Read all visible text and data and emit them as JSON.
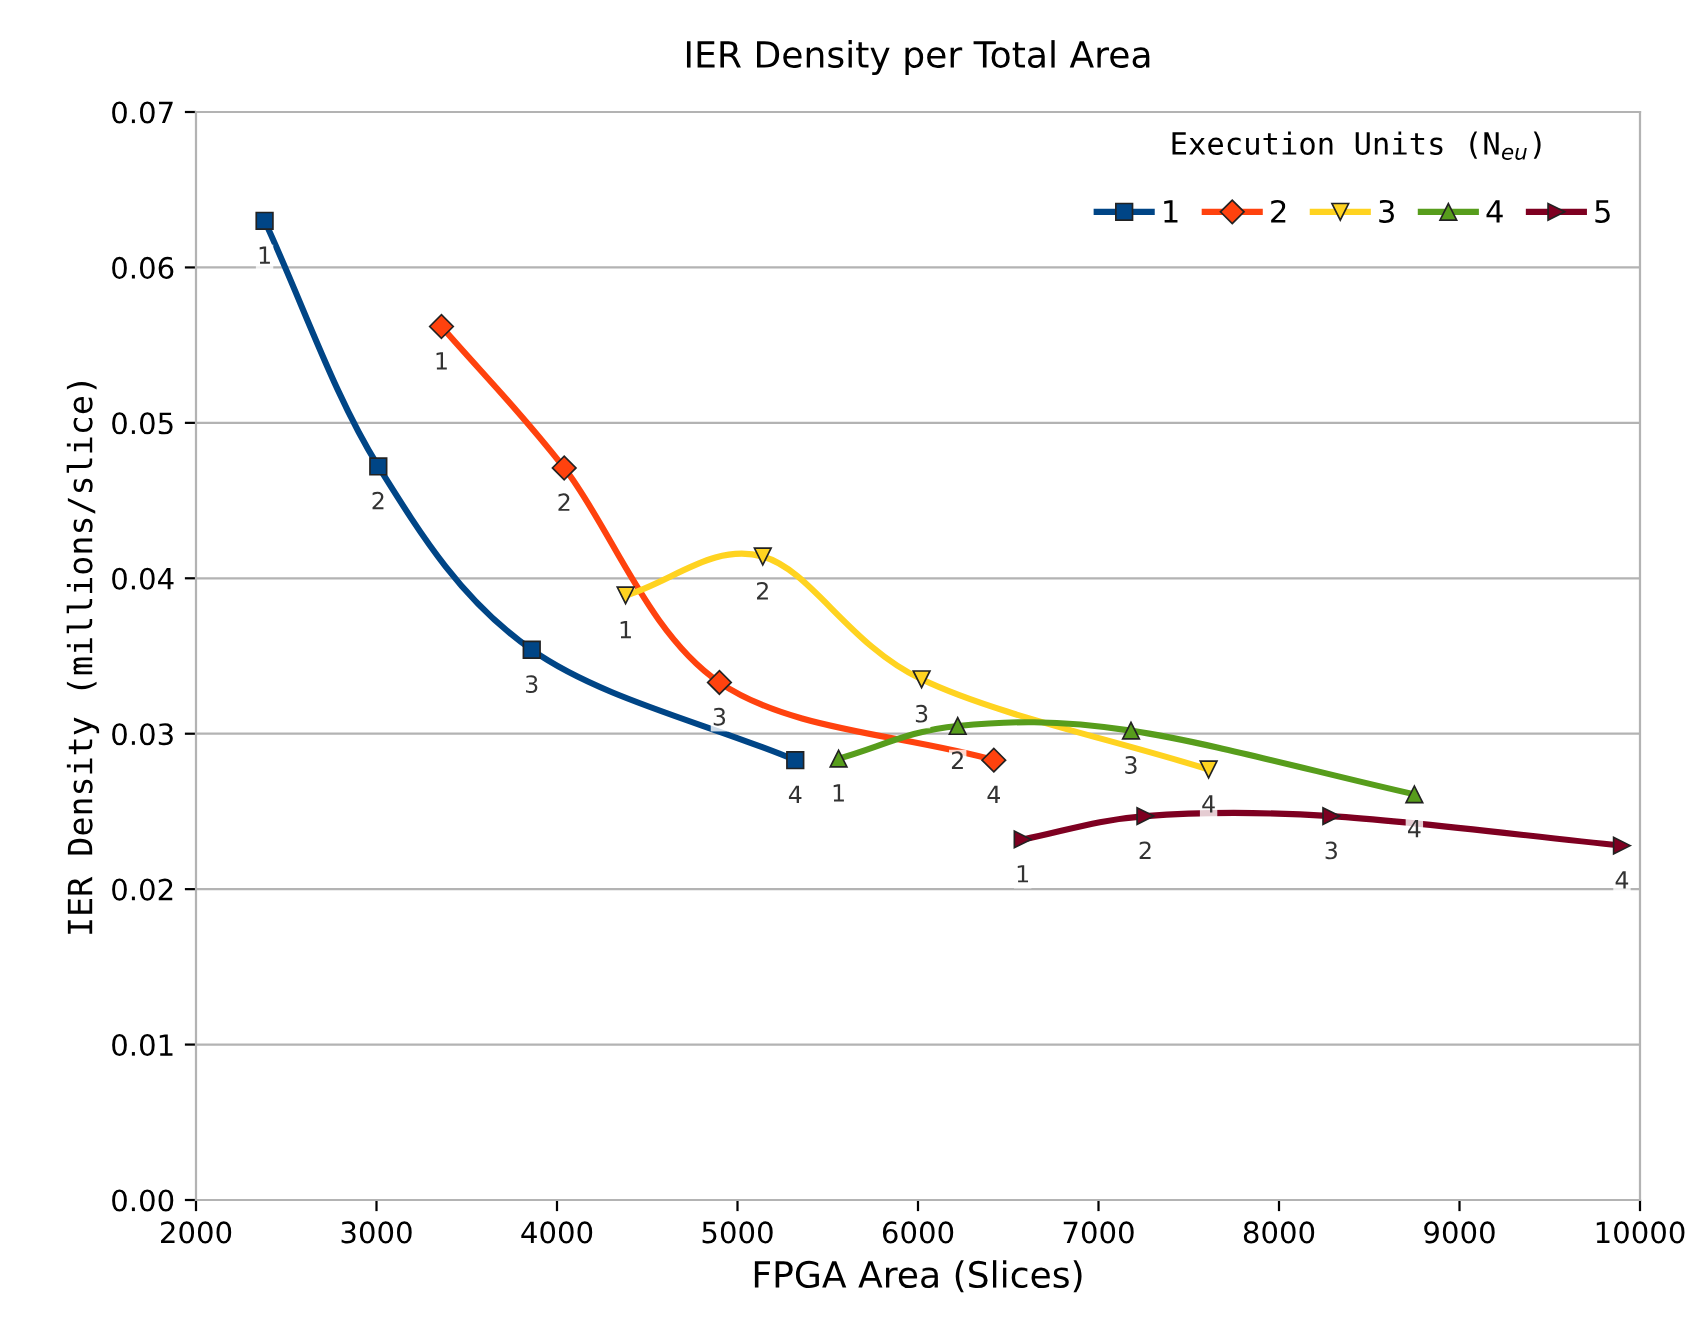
{
  "chart_data": {
    "type": "line",
    "title": "IER Density per Total Area",
    "xlabel": "FPGA Area (Slices)",
    "ylabel": "IER Density (millions/slice)",
    "legend_title": "Execution Units (N$_{eu}$)",
    "xlim": [
      2000,
      10000
    ],
    "xticks": [
      2000,
      3000,
      4000,
      5000,
      6000,
      7000,
      8000,
      9000,
      10000
    ],
    "ylim": [
      0,
      0.07
    ],
    "yticks": [
      {
        "value": 0,
        "label": "0.00"
      },
      {
        "value": 0.01,
        "label": "0.01"
      },
      {
        "value": 0.02,
        "label": "0.02"
      },
      {
        "value": 0.03,
        "label": "0.03"
      },
      {
        "value": 0.04,
        "label": "0.04"
      },
      {
        "value": 0.05,
        "label": "0.05"
      },
      {
        "value": 0.06,
        "label": "0.06"
      },
      {
        "value": 0.07,
        "label": "0.07"
      }
    ],
    "grid": "y",
    "legend": "top right",
    "series": [
      {
        "name": "1",
        "color": "#004586",
        "marker": "square",
        "x": [
          2380,
          3010,
          3860,
          5320
        ],
        "values": [
          0.063,
          0.0472,
          0.0354,
          0.0283
        ]
      },
      {
        "name": "2",
        "color": "#ff420e",
        "marker": "diamond",
        "x": [
          3360,
          4040,
          4900,
          6420
        ],
        "values": [
          0.0562,
          0.0471,
          0.0333,
          0.0283
        ]
      },
      {
        "name": "3",
        "color": "#ffd320",
        "marker": "triangle-down",
        "x": [
          4380,
          5140,
          6020,
          7610
        ],
        "values": [
          0.0389,
          0.0414,
          0.0335,
          0.0277
        ]
      },
      {
        "name": "4",
        "color": "#579d1c",
        "marker": "triangle",
        "x": [
          5560,
          6220,
          7180,
          8750
        ],
        "values": [
          0.0284,
          0.0305,
          0.0302,
          0.0261
        ]
      },
      {
        "name": "5",
        "color": "#7e0021",
        "marker": "triangle-right",
        "x": [
          6580,
          7260,
          8290,
          9900
        ],
        "values": [
          0.0232,
          0.0247,
          0.0247,
          0.0228
        ]
      }
    ],
    "annotations": [
      {
        "text": "1",
        "x": 2380,
        "y": 0.063
      },
      {
        "text": "2",
        "x": 3010,
        "y": 0.0472
      },
      {
        "text": "3",
        "x": 3860,
        "y": 0.0354
      },
      {
        "text": "4",
        "x": 5320,
        "y": 0.0283
      },
      {
        "text": "1",
        "x": 3360,
        "y": 0.0562
      },
      {
        "text": "2",
        "x": 4040,
        "y": 0.0471
      },
      {
        "text": "3",
        "x": 4900,
        "y": 0.0333
      },
      {
        "text": "4",
        "x": 6420,
        "y": 0.0283
      },
      {
        "text": "1",
        "x": 4380,
        "y": 0.0389
      },
      {
        "text": "2",
        "x": 5140,
        "y": 0.0414
      },
      {
        "text": "3",
        "x": 6020,
        "y": 0.0335
      },
      {
        "text": "4",
        "x": 7610,
        "y": 0.0277
      },
      {
        "text": "1",
        "x": 5560,
        "y": 0.0284
      },
      {
        "text": "2",
        "x": 6220,
        "y": 0.0305
      },
      {
        "text": "3",
        "x": 7180,
        "y": 0.0302
      },
      {
        "text": "4",
        "x": 8750,
        "y": 0.0261
      },
      {
        "text": "1",
        "x": 6580,
        "y": 0.0232
      },
      {
        "text": "2",
        "x": 7260,
        "y": 0.0247
      },
      {
        "text": "3",
        "x": 8290,
        "y": 0.0247
      },
      {
        "text": "4",
        "x": 9900,
        "y": 0.0228
      }
    ]
  }
}
